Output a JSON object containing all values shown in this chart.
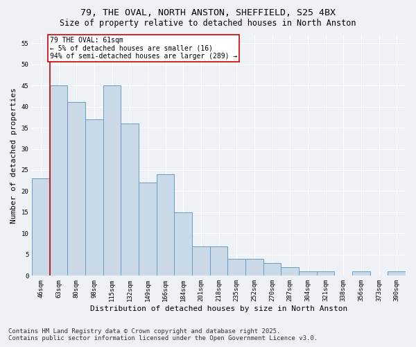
{
  "title_line1": "79, THE OVAL, NORTH ANSTON, SHEFFIELD, S25 4BX",
  "title_line2": "Size of property relative to detached houses in North Anston",
  "xlabel": "Distribution of detached houses by size in North Anston",
  "ylabel": "Number of detached properties",
  "categories": [
    "46sqm",
    "63sqm",
    "80sqm",
    "98sqm",
    "115sqm",
    "132sqm",
    "149sqm",
    "166sqm",
    "184sqm",
    "201sqm",
    "218sqm",
    "235sqm",
    "252sqm",
    "270sqm",
    "287sqm",
    "304sqm",
    "321sqm",
    "338sqm",
    "356sqm",
    "373sqm",
    "390sqm"
  ],
  "values": [
    23,
    45,
    41,
    37,
    45,
    36,
    22,
    24,
    15,
    7,
    7,
    4,
    4,
    3,
    2,
    1,
    1,
    0,
    1,
    0,
    1
  ],
  "bar_color": "#c9d9e8",
  "bar_edge_color": "#6a9bbf",
  "marker_line_color": "#cc0000",
  "annotation_text": "79 THE OVAL: 61sqm\n← 5% of detached houses are smaller (16)\n94% of semi-detached houses are larger (289) →",
  "annotation_box_color": "#ffffff",
  "annotation_box_edge": "#cc0000",
  "ylim": [
    0,
    57
  ],
  "yticks": [
    0,
    5,
    10,
    15,
    20,
    25,
    30,
    35,
    40,
    45,
    50,
    55
  ],
  "footer_line1": "Contains HM Land Registry data © Crown copyright and database right 2025.",
  "footer_line2": "Contains public sector information licensed under the Open Government Licence v3.0.",
  "bg_color": "#eef2f7",
  "grid_color": "#ffffff",
  "title_fontsize": 9.5,
  "subtitle_fontsize": 8.5,
  "tick_fontsize": 6.5,
  "label_fontsize": 8,
  "annotation_fontsize": 7,
  "footer_fontsize": 6.5
}
